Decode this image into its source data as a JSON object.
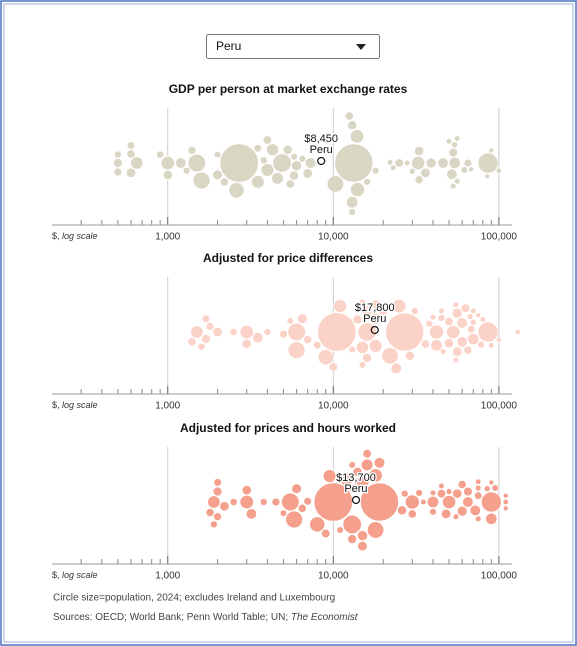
{
  "dropdown": {
    "selected": "Peru"
  },
  "chart_data": [
    {
      "type": "beeswarm",
      "title": "GDP per person at market exchange rates",
      "color": "#d9d6c4",
      "xlog": true,
      "xlim": [
        200,
        120000
      ],
      "xticks": [
        {
          "value": 1000,
          "label": "1,000"
        },
        {
          "value": 10000,
          "label": "10,000"
        },
        {
          "value": 100000,
          "label": "100,000"
        }
      ],
      "minor_xticks": [
        300,
        400,
        500,
        600,
        700,
        800,
        900,
        2000,
        3000,
        4000,
        5000,
        6000,
        7000,
        8000,
        9000,
        20000,
        30000,
        40000,
        50000,
        60000,
        70000,
        80000,
        90000
      ],
      "x_label": "$,",
      "x_label_scale": "log scale",
      "highlight": {
        "label": "Peru",
        "value": 8450,
        "value_label": "$8,450"
      },
      "values": [
        13300,
        2700,
        86000,
        4900,
        1500,
        1600,
        10300,
        2600,
        14000,
        1000,
        13900,
        32500,
        4000,
        3500,
        650,
        4300,
        4600,
        13000,
        54000,
        7300,
        52000,
        46000,
        1200,
        6000,
        39000,
        2000,
        7000,
        36000,
        600,
        1000,
        33000,
        13000,
        5300,
        5800,
        500,
        25000,
        53000,
        4000,
        33000,
        5500,
        12500,
        65000,
        62000,
        100000,
        90000,
        85000,
        16000,
        18000,
        13000,
        500,
        600,
        900,
        2200,
        600,
        500,
        1400,
        3500,
        3800,
        2000,
        1300,
        6500,
        5800,
        28000,
        23000,
        56000,
        53000,
        50000,
        68000,
        22000,
        30000,
        54000,
        56000
      ],
      "sizes": [
        1410,
        1440,
        340,
        280,
        250,
        225,
        215,
        175,
        145,
        130,
        130,
        124,
        115,
        115,
        105,
        100,
        90,
        87,
        84,
        71,
        69,
        68,
        67,
        63,
        59,
        56,
        52,
        52,
        50,
        49,
        48,
        46,
        46,
        45,
        42,
        37,
        40,
        38,
        33,
        37,
        35,
        27,
        18,
        9,
        5.5,
        6,
        20,
        19,
        20,
        21,
        27,
        23,
        34,
        34,
        31,
        30,
        28,
        22,
        17,
        21,
        18,
        18,
        10,
        10,
        10.5,
        10,
        10,
        6,
        10,
        11,
        12,
        9
      ]
    },
    {
      "type": "beeswarm",
      "title": "Adjusted for price differences",
      "color": "#fbd2c7",
      "xlog": true,
      "xlim": [
        200,
        120000
      ],
      "xticks": [
        {
          "value": 1000,
          "label": "1,000"
        },
        {
          "value": 10000,
          "label": "10,000"
        },
        {
          "value": 100000,
          "label": "100,000"
        }
      ],
      "minor_xticks": [
        300,
        400,
        500,
        600,
        700,
        800,
        900,
        2000,
        3000,
        4000,
        5000,
        6000,
        7000,
        8000,
        9000,
        20000,
        30000,
        40000,
        50000,
        60000,
        70000,
        80000,
        90000
      ],
      "x_label": "$,",
      "x_label_scale": "log scale",
      "highlight": {
        "label": "Peru",
        "value": 17800,
        "value_label": "$17,800"
      },
      "values": [
        27000,
        10500,
        86000,
        16000,
        6000,
        6000,
        22000,
        9000,
        42000,
        3000,
        25000,
        53000,
        11000,
        18000,
        1500,
        15000,
        18000,
        42000,
        70000,
        24000,
        60000,
        60000,
        3500,
        16000,
        56000,
        6500,
        20000,
        56000,
        2000,
        3000,
        50000,
        29000,
        16000,
        14000,
        1700,
        50000,
        63000,
        10000,
        65000,
        18000,
        36000,
        68000,
        78000,
        90000,
        100000,
        130000,
        31000,
        45000,
        38000,
        1600,
        1700,
        2500,
        7000,
        1400,
        1800,
        5000,
        8000,
        15000,
        5500,
        4000,
        15000,
        13000,
        46000,
        40000,
        67000,
        55000,
        80000,
        75000,
        45000,
        55000,
        70000,
        70000
      ],
      "sizes": [
        1410,
        1440,
        340,
        280,
        250,
        225,
        215,
        175,
        145,
        130,
        130,
        124,
        115,
        115,
        105,
        100,
        90,
        87,
        84,
        71,
        69,
        68,
        67,
        63,
        59,
        56,
        52,
        52,
        50,
        49,
        48,
        46,
        46,
        45,
        42,
        37,
        40,
        38,
        33,
        37,
        35,
        27,
        18,
        9,
        5.5,
        6,
        20,
        19,
        20,
        21,
        27,
        23,
        34,
        34,
        31,
        30,
        28,
        22,
        17,
        21,
        18,
        18,
        10,
        10,
        10.5,
        10,
        10,
        6,
        10,
        11,
        12,
        9
      ]
    },
    {
      "type": "beeswarm",
      "title": "Adjusted for prices and hours worked",
      "color": "#f4a08d",
      "xlog": true,
      "xlim": [
        200,
        120000
      ],
      "xticks": [
        {
          "value": 1000,
          "label": "1,000"
        },
        {
          "value": 10000,
          "label": "10,000"
        },
        {
          "value": 100000,
          "label": "100,000"
        }
      ],
      "minor_xticks": [
        300,
        400,
        500,
        600,
        700,
        800,
        900,
        2000,
        3000,
        4000,
        5000,
        6000,
        7000,
        8000,
        9000,
        20000,
        30000,
        40000,
        50000,
        60000,
        70000,
        80000,
        90000
      ],
      "x_label": "$,",
      "x_label_scale": "log scale",
      "highlight": {
        "label": "Peru",
        "value": 13700,
        "value_label": "$13,700"
      },
      "values": [
        19000,
        10000,
        90000,
        13000,
        5500,
        5800,
        18000,
        8000,
        30000,
        3000,
        18000,
        50000,
        9500,
        15000,
        1900,
        12000,
        16000,
        40000,
        90000,
        19000,
        65000,
        72000,
        3200,
        15000,
        60000,
        6000,
        15000,
        48000,
        2200,
        3000,
        56000,
        26000,
        14000,
        13000,
        2000,
        45000,
        65000,
        9000,
        60000,
        16000,
        30000,
        75000,
        95000,
        110000,
        110000,
        110000,
        27000,
        40000,
        33000,
        1900,
        2000,
        2500,
        6500,
        1800,
        2000,
        4500,
        7000,
        13000,
        5000,
        3800,
        13000,
        11000,
        45000,
        35000,
        75000,
        55000,
        75000,
        90000,
        40000,
        50000,
        85000,
        75000
      ],
      "sizes": [
        1410,
        1440,
        340,
        280,
        250,
        225,
        215,
        175,
        145,
        130,
        130,
        124,
        115,
        115,
        105,
        100,
        90,
        87,
        84,
        71,
        69,
        68,
        67,
        63,
        59,
        56,
        52,
        52,
        50,
        49,
        48,
        46,
        46,
        45,
        42,
        37,
        40,
        38,
        33,
        37,
        35,
        27,
        18,
        9,
        5.5,
        6,
        20,
        19,
        20,
        21,
        27,
        23,
        34,
        34,
        31,
        30,
        28,
        22,
        17,
        21,
        18,
        18,
        10,
        10,
        10.5,
        10,
        10,
        6,
        10,
        11,
        12,
        9
      ]
    }
  ],
  "footer": {
    "note": "Circle size=population, 2024; excludes Ireland and Luxembourg",
    "sources": "Sources: OECD; World Bank; Penn World Table; UN;",
    "sources_publication": "The Economist"
  }
}
